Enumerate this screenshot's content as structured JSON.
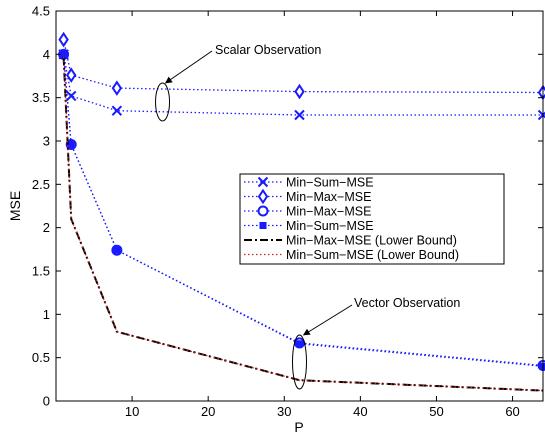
{
  "chart_data": {
    "type": "line",
    "title": "",
    "xlabel": "P",
    "ylabel": "MSE",
    "xlim": [
      0,
      64
    ],
    "ylim": [
      0,
      4.5
    ],
    "xticks": [
      10,
      20,
      30,
      40,
      50,
      60
    ],
    "yticks": [
      0,
      0.5,
      1,
      1.5,
      2,
      2.5,
      3,
      3.5,
      4,
      4.5
    ],
    "xtick_labels": [
      "10",
      "20",
      "30",
      "40",
      "50",
      "60"
    ],
    "ytick_labels": [
      "0",
      "0.5",
      "1",
      "1.5",
      "2",
      "2.5",
      "3",
      "3.5",
      "4",
      "4.5"
    ],
    "grid": false,
    "legend_position": "center-right",
    "series": [
      {
        "name": "Min−Sum−MSE",
        "x": [
          1,
          2,
          8,
          32,
          64
        ],
        "y": [
          4.0,
          3.52,
          3.35,
          3.3,
          3.3
        ],
        "color": "#1a1aff",
        "line": "dotted",
        "marker": "x"
      },
      {
        "name": "Min−Max−MSE",
        "x": [
          1,
          2,
          8,
          32,
          64
        ],
        "y": [
          4.17,
          3.76,
          3.61,
          3.57,
          3.56
        ],
        "color": "#1a1aff",
        "line": "dotted",
        "marker": "diamond"
      },
      {
        "name": "Min−Max−MSE",
        "x": [
          1,
          2,
          8,
          32,
          64
        ],
        "y": [
          4.0,
          2.96,
          1.74,
          0.67,
          0.41
        ],
        "color": "#1a1aff",
        "line": "dotted",
        "marker": "circle"
      },
      {
        "name": "Min−Sum−MSE",
        "x": [
          1,
          2,
          8,
          32,
          64
        ],
        "y": [
          4.0,
          2.96,
          1.74,
          0.66,
          0.4
        ],
        "color": "#1a1aff",
        "line": "dotted",
        "marker": "square"
      },
      {
        "name": "Min−Max−MSE (Lower Bound)",
        "x": [
          1,
          2,
          8,
          32,
          64
        ],
        "y": [
          3.97,
          2.1,
          0.8,
          0.24,
          0.12
        ],
        "color": "#000000",
        "line": "dashdot",
        "marker": "none"
      },
      {
        "name": "Min−Sum−MSE (Lower Bound)",
        "x": [
          1,
          2,
          8,
          32,
          64
        ],
        "y": [
          3.97,
          2.1,
          0.8,
          0.24,
          0.12
        ],
        "color": "#cc2222",
        "line": "dotted",
        "marker": "none"
      }
    ],
    "annotations": [
      {
        "text": "Scalar Observation",
        "target_x": 14,
        "target_y": 3.45
      },
      {
        "text": "Vector Observation",
        "target_x": 32,
        "target_y": 0.45
      }
    ]
  }
}
